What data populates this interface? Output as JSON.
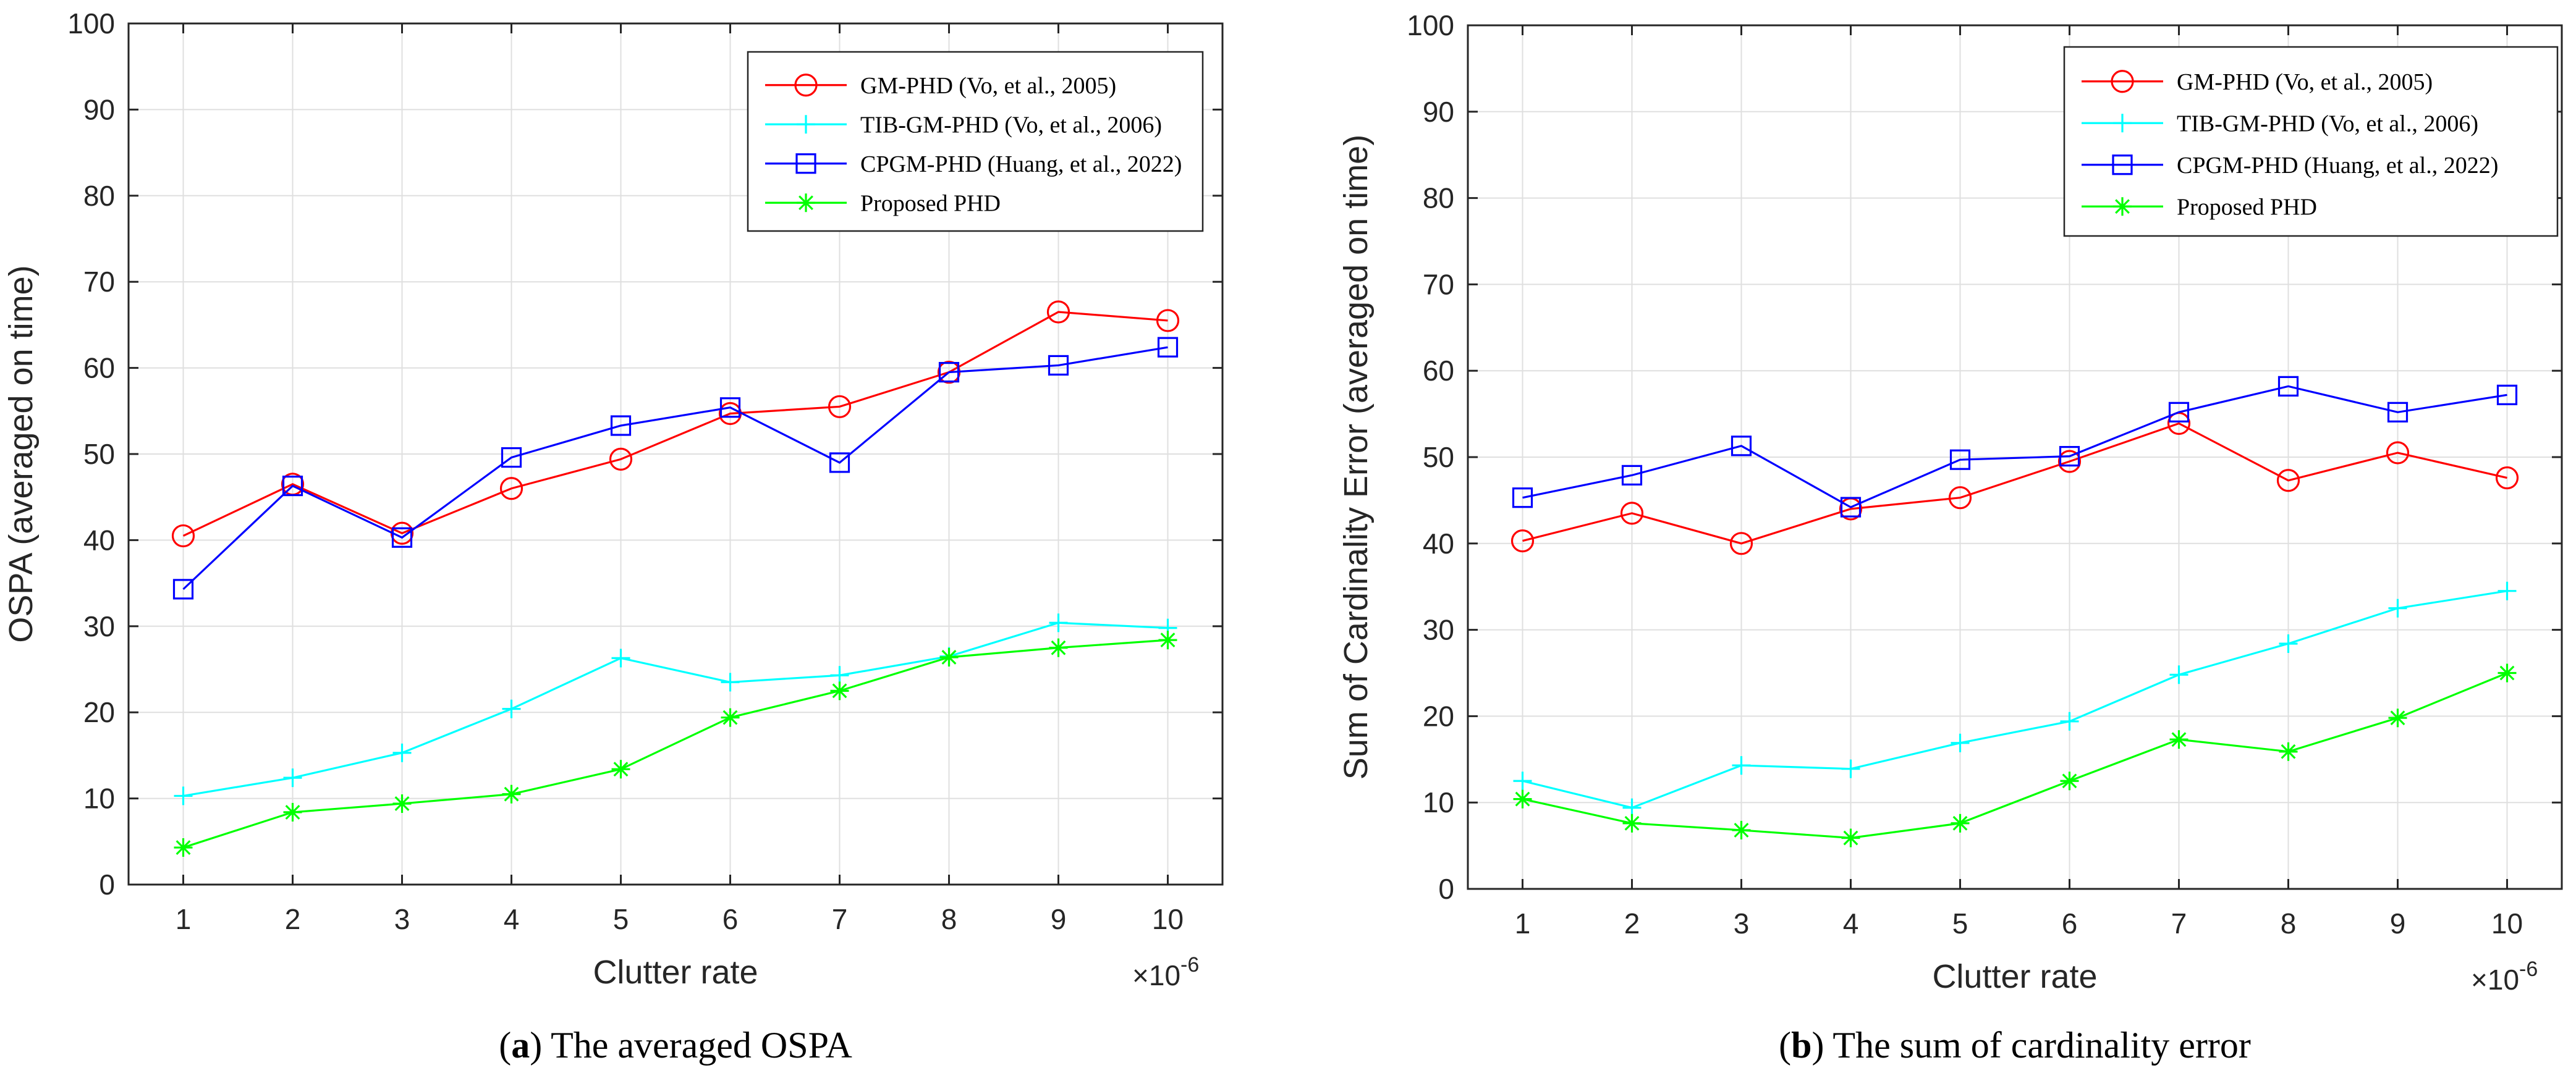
{
  "chart_data": [
    {
      "type": "line",
      "caption_label": "a",
      "caption_text": "The averaged OSPA",
      "xlabel": "Clutter rate",
      "ylabel": "OSPA (averaged on time)",
      "x_scale_base": "×10",
      "x_scale_exp": "-6",
      "x": [
        1,
        2,
        3,
        4,
        5,
        6,
        7,
        8,
        9,
        10
      ],
      "xlim": [
        0.5,
        10.5
      ],
      "ylim": [
        0,
        100
      ],
      "yticks": [
        0,
        10,
        20,
        30,
        40,
        50,
        60,
        70,
        80,
        90,
        100
      ],
      "grid": true,
      "legend_position": "top-right",
      "series": [
        {
          "name": "GM-PHD (Vo, et al., 2005)",
          "color": "#ff0000",
          "marker": "circle",
          "values": [
            40.5,
            46.5,
            40.8,
            46.0,
            49.4,
            54.7,
            55.5,
            59.5,
            66.5,
            65.5
          ]
        },
        {
          "name": "TIB-GM-PHD (Vo, et al., 2006)",
          "color": "#00ffff",
          "marker": "plus",
          "values": [
            10.3,
            12.4,
            15.3,
            20.4,
            26.3,
            23.5,
            24.3,
            26.5,
            30.4,
            29.8
          ]
        },
        {
          "name": "CPGM-PHD (Huang, et al., 2022)",
          "color": "#0000ff",
          "marker": "square",
          "values": [
            34.3,
            46.3,
            40.3,
            49.6,
            53.3,
            55.4,
            49.0,
            59.5,
            60.3,
            62.4
          ]
        },
        {
          "name": "Proposed PHD",
          "color": "#00ff00",
          "marker": "asterisk",
          "values": [
            4.3,
            8.4,
            9.4,
            10.5,
            13.4,
            19.4,
            22.5,
            26.4,
            27.5,
            28.4
          ]
        }
      ]
    },
    {
      "type": "line",
      "caption_label": "b",
      "caption_text": "The sum of cardinality error",
      "xlabel": "Clutter rate",
      "ylabel": "Sum of Cardinality Error (averaged on time)",
      "x_scale_base": "×10",
      "x_scale_exp": "-6",
      "x": [
        1,
        2,
        3,
        4,
        5,
        6,
        7,
        8,
        9,
        10
      ],
      "xlim": [
        0.5,
        10.5
      ],
      "ylim": [
        0,
        100
      ],
      "yticks": [
        0,
        10,
        20,
        30,
        40,
        50,
        60,
        70,
        80,
        90,
        100
      ],
      "grid": true,
      "legend_position": "top-right",
      "series": [
        {
          "name": "GM-PHD (Vo, et al., 2005)",
          "color": "#ff0000",
          "marker": "circle",
          "values": [
            40.3,
            43.5,
            40.0,
            44.0,
            45.3,
            49.5,
            53.9,
            47.3,
            50.5,
            47.6
          ]
        },
        {
          "name": "TIB-GM-PHD (Vo, et al., 2006)",
          "color": "#00ffff",
          "marker": "plus",
          "values": [
            12.5,
            9.4,
            14.3,
            13.9,
            16.9,
            19.4,
            24.8,
            28.4,
            32.5,
            34.5
          ]
        },
        {
          "name": "CPGM-PHD (Huang, et al., 2022)",
          "color": "#0000ff",
          "marker": "square",
          "values": [
            45.3,
            47.9,
            51.3,
            44.2,
            49.7,
            50.1,
            55.2,
            58.2,
            55.2,
            57.2
          ]
        },
        {
          "name": "Proposed PHD",
          "color": "#00ff00",
          "marker": "asterisk",
          "values": [
            10.4,
            7.6,
            6.8,
            5.9,
            7.6,
            12.5,
            17.3,
            15.9,
            19.8,
            25.0
          ]
        }
      ]
    }
  ]
}
